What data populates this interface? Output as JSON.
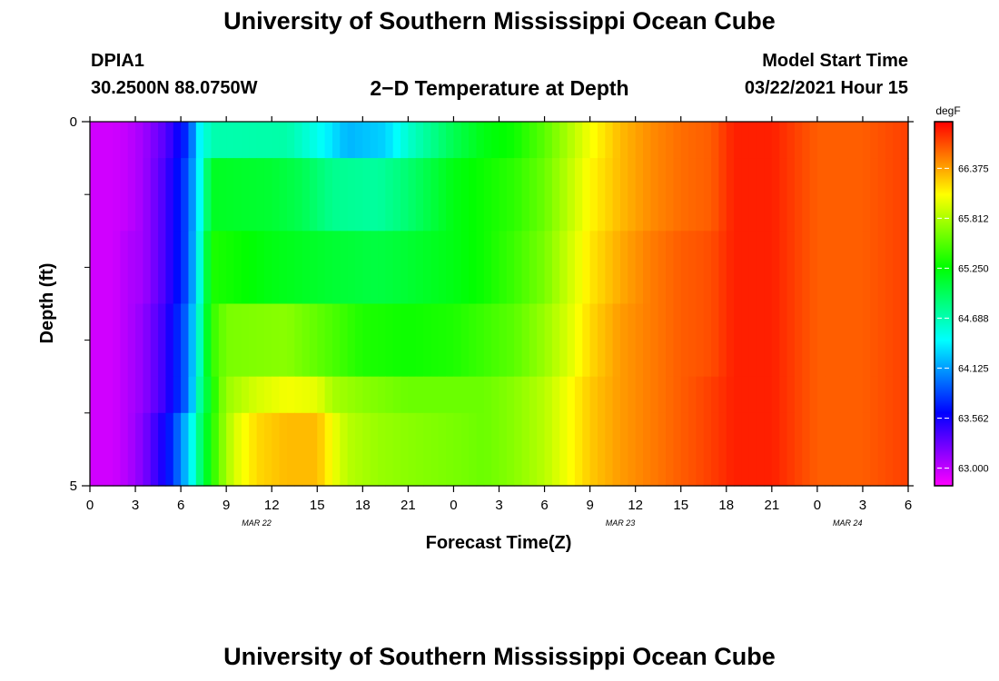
{
  "header": {
    "title": "University of Southern Mississippi Ocean Cube",
    "station_id": "DPIA1",
    "station_coords": "30.2500N 88.0750W",
    "plot_title": "2−D Temperature at Depth",
    "model_start_label": "Model Start Time",
    "model_start_time": "03/22/2021 Hour 15"
  },
  "footer": {
    "title": "University of Southern Mississippi Ocean Cube"
  },
  "chart_data": {
    "type": "heatmap",
    "xlabel": "Forecast Time(Z)",
    "ylabel": "Depth (ft)",
    "x_ticks": [
      "0",
      "3",
      "6",
      "9",
      "12",
      "15",
      "18",
      "21",
      "0",
      "3",
      "6",
      "9",
      "12",
      "15",
      "18",
      "21",
      "0",
      "3",
      "6"
    ],
    "date_labels": [
      {
        "label": "MAR 22",
        "at_hour": 11
      },
      {
        "label": "MAR 23",
        "at_hour": 35
      },
      {
        "label": "MAR 24",
        "at_hour": 50
      }
    ],
    "x_range_hours": [
      0,
      54
    ],
    "y_ticks": [
      "0",
      "5"
    ],
    "ylim": [
      0,
      5
    ],
    "y_minor_ticks": 4,
    "colorbar": {
      "unit": "degF",
      "tick_labels": [
        "66.375",
        "65.812",
        "65.250",
        "64.688",
        "64.125",
        "63.562",
        "63.000"
      ],
      "min": 62.8,
      "max": 66.9
    },
    "depth_layers": [
      {
        "depth_range": [
          0,
          0.5
        ],
        "profile": [
          [
            0,
            62.95
          ],
          [
            1.5,
            62.95
          ],
          [
            2.5,
            63.0
          ],
          [
            3.5,
            63.1
          ],
          [
            5,
            63.35
          ],
          [
            6.5,
            63.8
          ],
          [
            7.2,
            64.4
          ],
          [
            8,
            64.7
          ],
          [
            13,
            64.72
          ],
          [
            15,
            64.5
          ],
          [
            17,
            64.2
          ],
          [
            19.5,
            64.3
          ],
          [
            21,
            64.6
          ],
          [
            24,
            65.0
          ],
          [
            26,
            65.2
          ],
          [
            28,
            65.3
          ],
          [
            30,
            65.55
          ],
          [
            31.5,
            65.8
          ],
          [
            33,
            66.05
          ],
          [
            35,
            66.3
          ],
          [
            37,
            66.45
          ],
          [
            39,
            66.55
          ],
          [
            41,
            66.6
          ],
          [
            42.5,
            66.8
          ],
          [
            45,
            66.8
          ],
          [
            48,
            66.6
          ],
          [
            51,
            66.6
          ],
          [
            54,
            66.7
          ]
        ]
      },
      {
        "depth_range": [
          0.5,
          1.5
        ],
        "profile": [
          [
            0,
            62.95
          ],
          [
            1.5,
            62.95
          ],
          [
            2.5,
            63.0
          ],
          [
            3.5,
            63.1
          ],
          [
            5,
            63.4
          ],
          [
            6.5,
            63.9
          ],
          [
            7.3,
            64.5
          ],
          [
            8,
            65.15
          ],
          [
            12,
            65.1
          ],
          [
            14,
            65.0
          ],
          [
            16,
            64.8
          ],
          [
            19,
            64.75
          ],
          [
            21,
            64.9
          ],
          [
            24,
            65.2
          ],
          [
            26,
            65.3
          ],
          [
            28,
            65.4
          ],
          [
            30,
            65.6
          ],
          [
            31.5,
            65.85
          ],
          [
            33,
            66.1
          ],
          [
            35,
            66.3
          ],
          [
            37,
            66.45
          ],
          [
            39,
            66.55
          ],
          [
            41,
            66.6
          ],
          [
            42.5,
            66.8
          ],
          [
            45,
            66.8
          ],
          [
            48,
            66.6
          ],
          [
            51,
            66.6
          ],
          [
            54,
            66.7
          ]
        ]
      },
      {
        "depth_range": [
          1.5,
          2.5
        ],
        "profile": [
          [
            0,
            62.95
          ],
          [
            1.5,
            62.95
          ],
          [
            2.5,
            63.05
          ],
          [
            3.5,
            63.1
          ],
          [
            5,
            63.4
          ],
          [
            6.5,
            63.9
          ],
          [
            7.3,
            64.6
          ],
          [
            8,
            65.35
          ],
          [
            12,
            65.2
          ],
          [
            16,
            65.1
          ],
          [
            19,
            65.05
          ],
          [
            21,
            65.1
          ],
          [
            24,
            65.2
          ],
          [
            26,
            65.3
          ],
          [
            28,
            65.45
          ],
          [
            30,
            65.65
          ],
          [
            31.5,
            65.9
          ],
          [
            33,
            66.15
          ],
          [
            35,
            66.35
          ],
          [
            37,
            66.5
          ],
          [
            39,
            66.6
          ],
          [
            41,
            66.65
          ],
          [
            42.5,
            66.8
          ],
          [
            45,
            66.8
          ],
          [
            48,
            66.6
          ],
          [
            51,
            66.6
          ],
          [
            54,
            66.7
          ]
        ]
      },
      {
        "depth_range": [
          2.5,
          3.5
        ],
        "profile": [
          [
            0,
            62.95
          ],
          [
            1.5,
            62.95
          ],
          [
            2.5,
            63.05
          ],
          [
            3.5,
            63.15
          ],
          [
            5,
            63.45
          ],
          [
            6.5,
            64.0
          ],
          [
            7.3,
            64.7
          ],
          [
            8,
            65.4
          ],
          [
            9,
            65.65
          ],
          [
            13,
            65.7
          ],
          [
            16,
            65.5
          ],
          [
            18,
            65.35
          ],
          [
            21,
            65.3
          ],
          [
            24,
            65.35
          ],
          [
            26,
            65.45
          ],
          [
            28,
            65.55
          ],
          [
            30,
            65.75
          ],
          [
            31.5,
            65.95
          ],
          [
            33,
            66.2
          ],
          [
            35,
            66.4
          ],
          [
            37,
            66.5
          ],
          [
            39,
            66.6
          ],
          [
            41,
            66.65
          ],
          [
            42.5,
            66.8
          ],
          [
            45,
            66.8
          ],
          [
            48,
            66.6
          ],
          [
            51,
            66.6
          ],
          [
            54,
            66.7
          ]
        ]
      },
      {
        "depth_range": [
          3.5,
          4.0
        ],
        "profile": [
          [
            0,
            62.95
          ],
          [
            1.5,
            62.95
          ],
          [
            2.5,
            63.05
          ],
          [
            3.5,
            63.15
          ],
          [
            5,
            63.45
          ],
          [
            6.5,
            64.0
          ],
          [
            7.3,
            64.8
          ],
          [
            8.5,
            65.55
          ],
          [
            9,
            65.75
          ],
          [
            11,
            65.95
          ],
          [
            13,
            66.05
          ],
          [
            15,
            66.0
          ],
          [
            16,
            65.8
          ],
          [
            18,
            65.7
          ],
          [
            21,
            65.6
          ],
          [
            24,
            65.6
          ],
          [
            26,
            65.6
          ],
          [
            28,
            65.7
          ],
          [
            30,
            65.85
          ],
          [
            31.5,
            66.05
          ],
          [
            33,
            66.25
          ],
          [
            35,
            66.4
          ],
          [
            37,
            66.5
          ],
          [
            39,
            66.6
          ],
          [
            41,
            66.7
          ],
          [
            42.5,
            66.8
          ],
          [
            45,
            66.8
          ],
          [
            48,
            66.6
          ],
          [
            51,
            66.6
          ],
          [
            54,
            66.7
          ]
        ]
      },
      {
        "depth_range": [
          4.0,
          5.0
        ],
        "profile": [
          [
            0,
            62.95
          ],
          [
            1.5,
            62.95
          ],
          [
            2.5,
            63.05
          ],
          [
            3.5,
            63.2
          ],
          [
            5,
            63.6
          ],
          [
            5.5,
            63.8
          ],
          [
            6.5,
            64.3
          ],
          [
            7.3,
            64.9
          ],
          [
            8.5,
            65.6
          ],
          [
            9.5,
            65.95
          ],
          [
            11,
            66.2
          ],
          [
            13,
            66.3
          ],
          [
            15,
            66.3
          ],
          [
            16,
            66.05
          ],
          [
            17,
            65.85
          ],
          [
            19,
            65.75
          ],
          [
            21,
            65.7
          ],
          [
            24,
            65.65
          ],
          [
            26,
            65.6
          ],
          [
            28,
            65.7
          ],
          [
            30,
            65.85
          ],
          [
            31.5,
            66.05
          ],
          [
            33,
            66.25
          ],
          [
            35,
            66.4
          ],
          [
            37,
            66.5
          ],
          [
            39,
            66.6
          ],
          [
            41,
            66.7
          ],
          [
            42.5,
            66.8
          ],
          [
            45,
            66.8
          ],
          [
            48,
            66.6
          ],
          [
            51,
            66.6
          ],
          [
            54,
            66.7
          ]
        ]
      }
    ]
  }
}
